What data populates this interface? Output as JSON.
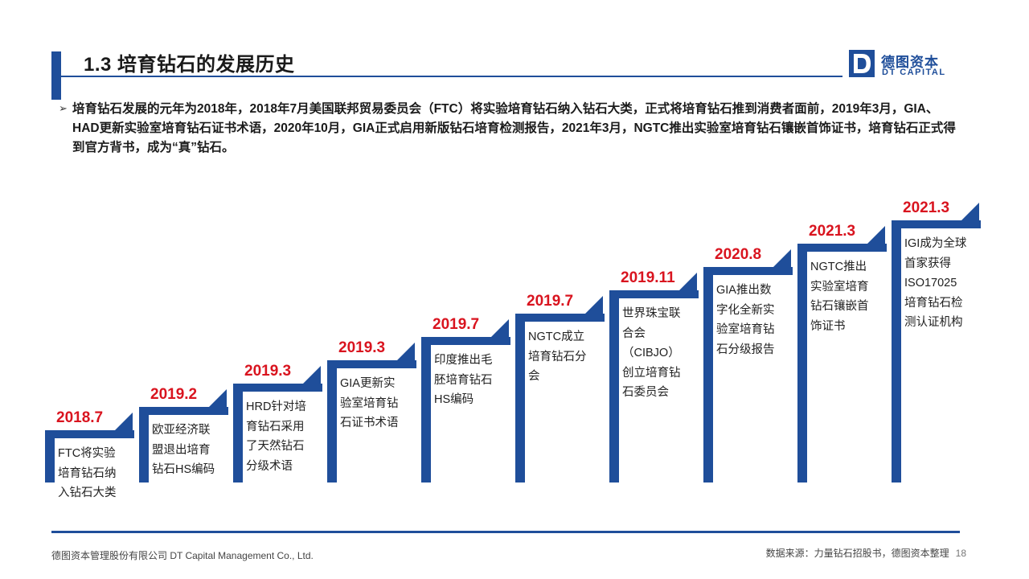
{
  "header": {
    "title": "1.3 培育钻石的发展历史",
    "logo_cn": "德图资本",
    "logo_en": "DT CAPITAL"
  },
  "intro": {
    "bullet": "培育钻石发展的元年为2018年，2018年7月美国联邦贸易委员会（FTC）将实验培育钻石纳入钻石大类，正式将培育钻石推到消费者面前，2019年3月，GIA、HAD更新实验室培育钻石证书术语，2020年10月，GIA正式启用新版钻石培育检测报告，2021年3月，NGTC推出实验室培育钻石镶嵌首饰证书，培育钻石正式得到官方背书，成为“真”钻石。"
  },
  "timeline": [
    {
      "year": "2018.7",
      "lines": [
        "FTC将实验",
        "培育钻石纳",
        "入钻石大类"
      ]
    },
    {
      "year": "2019.2",
      "lines": [
        "欧亚经济联",
        "盟退出培育",
        "钻石HS编码"
      ]
    },
    {
      "year": "2019.3",
      "lines": [
        "HRD针对培",
        "育钻石采用",
        "了天然钻石",
        "分级术语"
      ]
    },
    {
      "year": "2019.3",
      "lines": [
        "GIA更新实",
        "验室培育钻",
        "石证书术语"
      ]
    },
    {
      "year": "2019.7",
      "lines": [
        "印度推出毛",
        "胚培育钻石",
        "HS编码"
      ]
    },
    {
      "year": "2019.7",
      "lines": [
        "NGTC成立",
        "培育钻石分",
        "会"
      ]
    },
    {
      "year": "2019.11",
      "lines": [
        "世界珠宝联",
        "合会",
        "（CIBJO）",
        "创立培育钻",
        "石委员会"
      ]
    },
    {
      "year": "2020.8",
      "lines": [
        "GIA推出数",
        "字化全新实",
        "验室培育钻",
        "石分级报告"
      ]
    },
    {
      "year": "2021.3",
      "lines": [
        "NGTC推出",
        "实验室培育",
        "钻石镶嵌首",
        "饰证书"
      ]
    },
    {
      "year": "2021.3",
      "lines": [
        "IGI成为全球",
        "首家获得",
        "ISO17025",
        "培育钻石检",
        "测认证机构"
      ]
    }
  ],
  "footer": {
    "company": "德图资本管理股份有限公司  DT Capital  Management  Co., Ltd.",
    "source": "数据来源：力量钻石招股书，德图资本整理",
    "page": "18"
  },
  "colors": {
    "brand_blue": "#1f4e9a",
    "year_red": "#d9141f"
  }
}
